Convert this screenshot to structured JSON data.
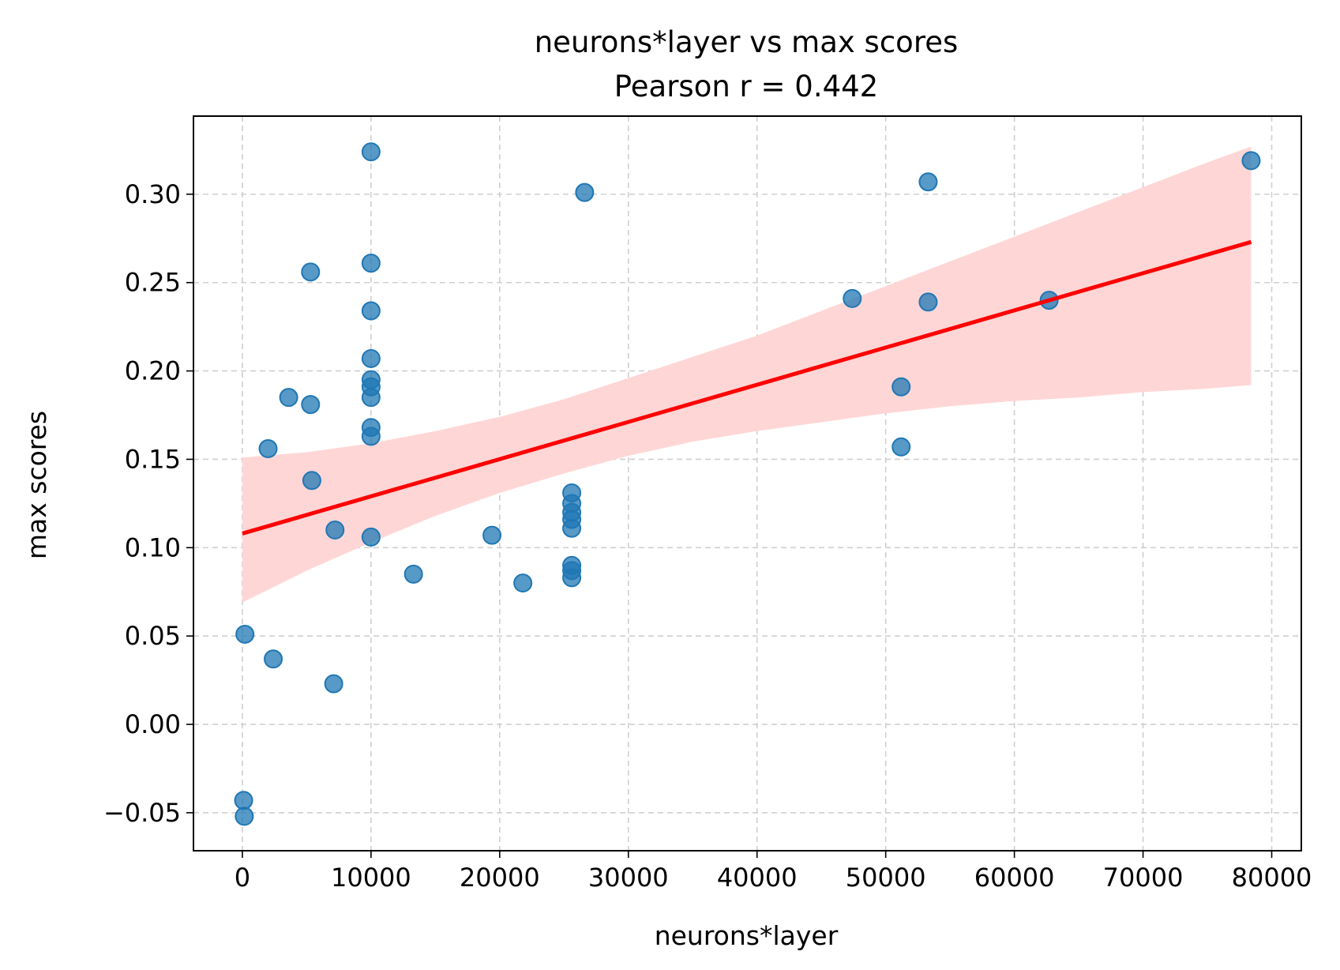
{
  "chart_data": {
    "type": "scatter",
    "title": "neurons*layer vs max scores",
    "subtitle": "Pearson r = 0.442",
    "xlabel": "neurons*layer",
    "ylabel": "max scores",
    "xlim": [
      -3800,
      82300
    ],
    "ylim": [
      -0.0715,
      0.3442
    ],
    "xticks": [
      0,
      10000,
      20000,
      30000,
      40000,
      50000,
      60000,
      70000,
      80000
    ],
    "xtick_labels": [
      "0",
      "10000",
      "20000",
      "30000",
      "40000",
      "50000",
      "60000",
      "70000",
      "80000"
    ],
    "yticks": [
      -0.05,
      0.0,
      0.05,
      0.1,
      0.15,
      0.2,
      0.25,
      0.3
    ],
    "ytick_labels": [
      "−0.05",
      "0.00",
      "0.05",
      "0.10",
      "0.15",
      "0.20",
      "0.25",
      "0.30"
    ],
    "grid": true,
    "point_color": "#1f77b4",
    "regression_color": "#ff0000",
    "confidence_band_color": "#ffd6d6",
    "points": [
      {
        "x": 100,
        "y": -0.043
      },
      {
        "x": 150,
        "y": -0.052
      },
      {
        "x": 200,
        "y": 0.051
      },
      {
        "x": 2000,
        "y": 0.156
      },
      {
        "x": 2400,
        "y": 0.037
      },
      {
        "x": 3600,
        "y": 0.185
      },
      {
        "x": 5300,
        "y": 0.256
      },
      {
        "x": 5300,
        "y": 0.181
      },
      {
        "x": 5400,
        "y": 0.138
      },
      {
        "x": 7100,
        "y": 0.023
      },
      {
        "x": 7200,
        "y": 0.11
      },
      {
        "x": 10000,
        "y": 0.324
      },
      {
        "x": 10000,
        "y": 0.261
      },
      {
        "x": 10000,
        "y": 0.234
      },
      {
        "x": 10000,
        "y": 0.207
      },
      {
        "x": 10000,
        "y": 0.195
      },
      {
        "x": 10000,
        "y": 0.191
      },
      {
        "x": 10000,
        "y": 0.185
      },
      {
        "x": 10000,
        "y": 0.168
      },
      {
        "x": 10000,
        "y": 0.163
      },
      {
        "x": 10000,
        "y": 0.106
      },
      {
        "x": 13300,
        "y": 0.085
      },
      {
        "x": 19400,
        "y": 0.107
      },
      {
        "x": 21800,
        "y": 0.08
      },
      {
        "x": 25600,
        "y": 0.131
      },
      {
        "x": 25600,
        "y": 0.125
      },
      {
        "x": 25600,
        "y": 0.12
      },
      {
        "x": 25600,
        "y": 0.116
      },
      {
        "x": 25600,
        "y": 0.111
      },
      {
        "x": 25600,
        "y": 0.09
      },
      {
        "x": 25600,
        "y": 0.087
      },
      {
        "x": 25600,
        "y": 0.083
      },
      {
        "x": 26600,
        "y": 0.301
      },
      {
        "x": 47400,
        "y": 0.241
      },
      {
        "x": 51200,
        "y": 0.191
      },
      {
        "x": 51200,
        "y": 0.157
      },
      {
        "x": 53300,
        "y": 0.307
      },
      {
        "x": 53300,
        "y": 0.239
      },
      {
        "x": 62700,
        "y": 0.24
      },
      {
        "x": 78400,
        "y": 0.319
      }
    ],
    "regression_line": {
      "x": [
        0,
        78400
      ],
      "y": [
        0.108,
        0.273
      ]
    },
    "confidence_band": {
      "x": [
        0,
        5000,
        10000,
        15000,
        20000,
        25000,
        30000,
        35000,
        40000,
        45000,
        50000,
        55000,
        60000,
        65000,
        70000,
        75000,
        78400
      ],
      "lower": [
        0.069,
        0.087,
        0.103,
        0.118,
        0.131,
        0.142,
        0.152,
        0.16,
        0.166,
        0.171,
        0.176,
        0.18,
        0.183,
        0.185,
        0.188,
        0.19,
        0.192
      ],
      "upper": [
        0.151,
        0.154,
        0.159,
        0.166,
        0.174,
        0.184,
        0.196,
        0.208,
        0.22,
        0.234,
        0.248,
        0.262,
        0.276,
        0.29,
        0.304,
        0.318,
        0.327
      ]
    }
  }
}
